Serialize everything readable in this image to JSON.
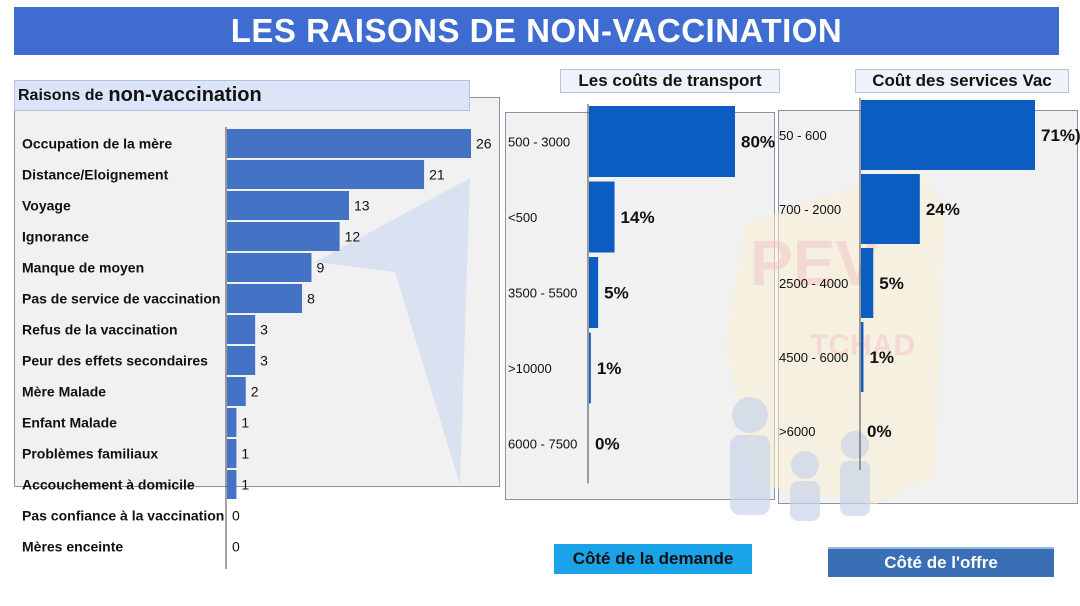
{
  "title": "LES RAISONS DE NON-VACCINATION",
  "left": {
    "header_prefix": "Raisons de",
    "header_main": "non-vaccination"
  },
  "transport": {
    "title": "Les coûts de transport",
    "footer": "Côté de la demande"
  },
  "services": {
    "title": "Coût des services Vac",
    "footer": "Côté de l'offre"
  },
  "watermark": {
    "text1": "PEV",
    "text2": "TCHAD"
  },
  "colors": {
    "banner": "#3f6cd0",
    "bar_left": "#4472c4",
    "bar_right": "#0b5dc2",
    "demand": "#1aa3e8",
    "offer": "#3a6fb5"
  },
  "chart_data": [
    {
      "type": "bar",
      "orientation": "horizontal",
      "title": "Raisons de non-vaccination",
      "categories": [
        "Occupation de la mère",
        "Distance/Eloignement",
        "Voyage",
        "Ignorance",
        "Manque de moyen",
        "Pas de service de vaccination",
        "Refus de la vaccination",
        "Peur des effets secondaires",
        "Mère Malade",
        "Enfant Malade",
        "Problèmes familiaux",
        "Accouchement à domicile",
        "Pas confiance à la vaccination",
        "Mères enceinte"
      ],
      "values": [
        26,
        21,
        13,
        12,
        9,
        8,
        3,
        3,
        2,
        1,
        1,
        1,
        0,
        0
      ],
      "value_labels": [
        "26",
        "21",
        "13",
        "12",
        "9",
        "8",
        "3",
        "3",
        "2",
        "1",
        "1",
        "1",
        "0",
        "0"
      ],
      "xlim": [
        0,
        26
      ],
      "grid": false
    },
    {
      "type": "bar",
      "orientation": "horizontal",
      "title": "Les coûts de transport",
      "categories": [
        "500 - 3000",
        "<500",
        "3500 - 5500",
        ">10000",
        "6000 - 7500"
      ],
      "values": [
        80,
        14,
        5,
        1,
        0
      ],
      "value_labels": [
        "80%",
        "14%",
        "5%",
        "1%",
        "0%"
      ],
      "xlim": [
        0,
        80
      ],
      "grid": false
    },
    {
      "type": "bar",
      "orientation": "horizontal",
      "title": "Coût des services Vac",
      "categories": [
        "50 - 600",
        "700 - 2000",
        "2500 - 4000",
        "4500 - 6000",
        ">6000"
      ],
      "values": [
        71,
        24,
        5,
        1,
        0
      ],
      "value_labels": [
        "71%)",
        "24%",
        "5%",
        "1%",
        "0%"
      ],
      "xlim": [
        0,
        71
      ],
      "grid": false
    }
  ]
}
